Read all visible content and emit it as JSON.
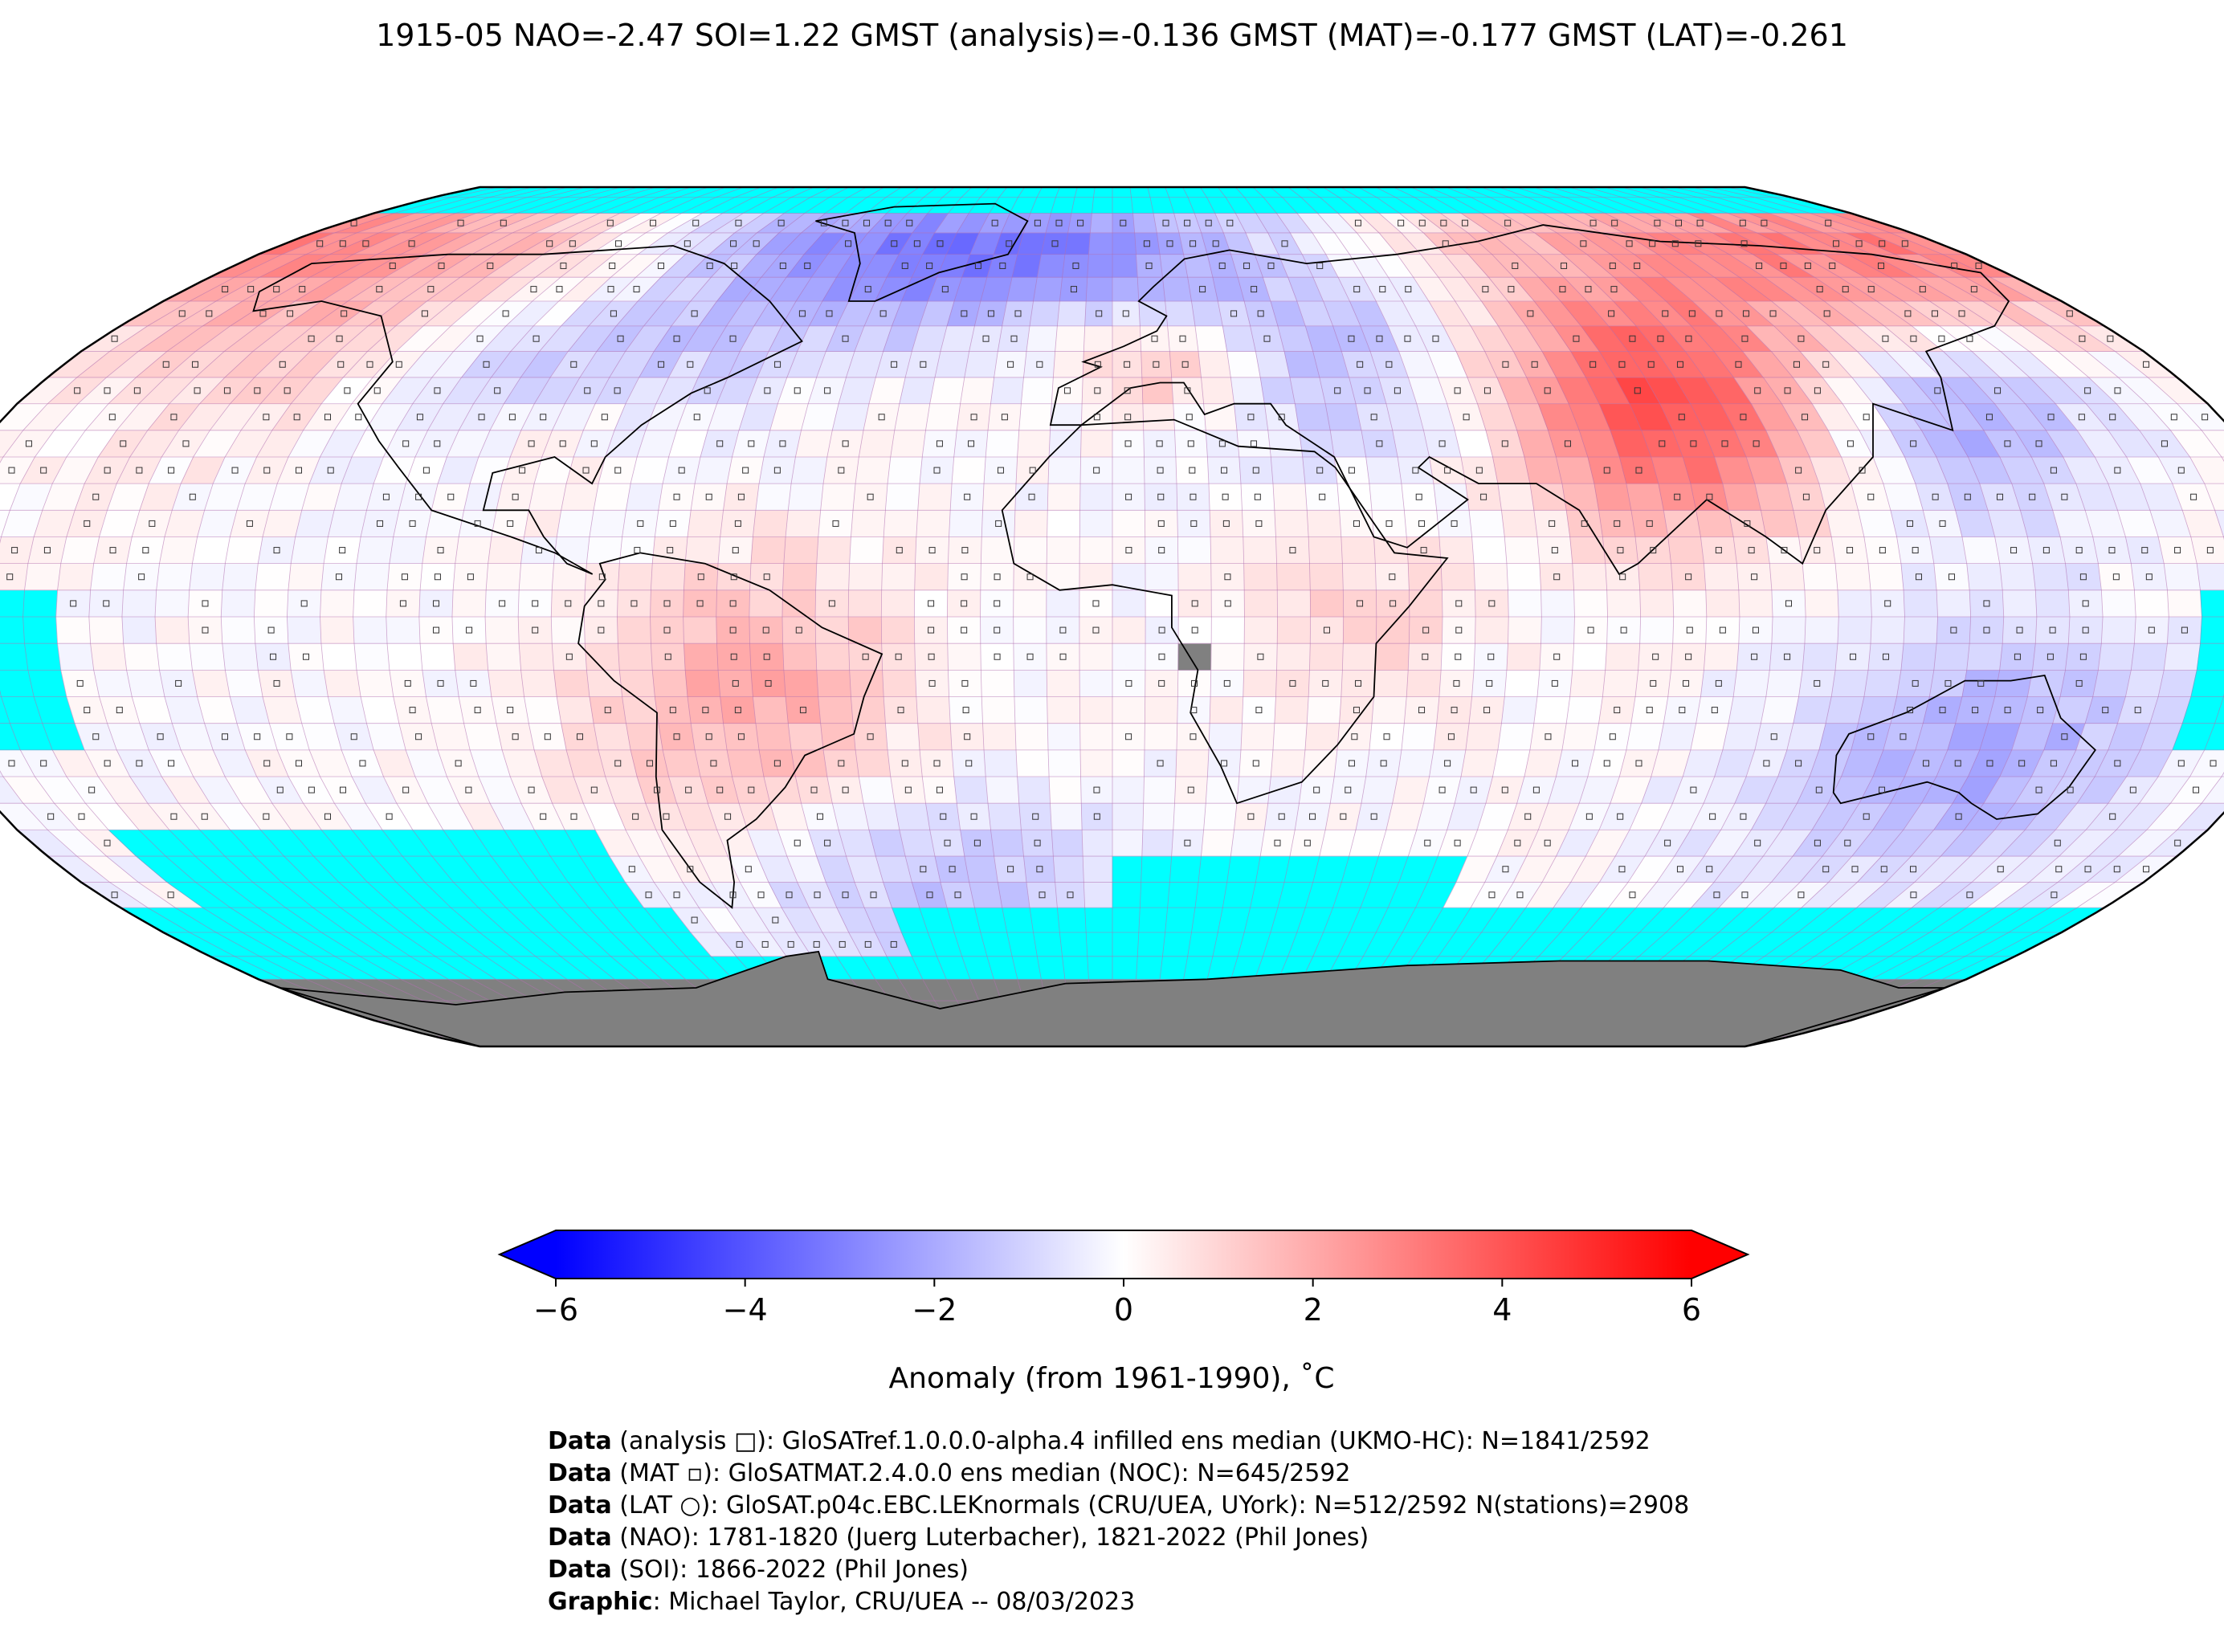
{
  "title": "1915-05 NAO=-2.47 SOI=1.22 GMST (analysis)=-0.136 GMST (MAT)=-0.177 GMST (LAT)=-0.261",
  "colorbar": {
    "label": "Anomaly (from 1961-1990), ˚C",
    "ticks": [
      "−6",
      "−4",
      "−2",
      "0",
      "2",
      "4",
      "6"
    ],
    "range": [
      -6,
      6
    ],
    "colors": {
      "min": "#0000ff",
      "mid": "#ffffff",
      "max": "#ff0000"
    },
    "extend": "both"
  },
  "map": {
    "projection": "Robinson",
    "grid": "5° lat-lon cells",
    "missing_color": "#00ffff",
    "land_mask_color": "#808080",
    "regions": [
      {
        "region": "Central/Eastern Siberia",
        "anomaly": 3.5
      },
      {
        "region": "Alaska / NW Canada",
        "anomaly": 2.0
      },
      {
        "region": "Central Asia / Tibet",
        "anomaly": 3.0
      },
      {
        "region": "Southern USA / Gulf",
        "anomaly": 1.5
      },
      {
        "region": "Central Europe",
        "anomaly": 2.0
      },
      {
        "region": "Central South America",
        "anomaly": 2.0
      },
      {
        "region": "Eastern Africa",
        "anomaly": 1.0
      },
      {
        "region": "Northern USA / Canada",
        "anomaly": -2.0
      },
      {
        "region": "Scandinavia / Western Russia",
        "anomaly": -2.5
      },
      {
        "region": "East Asia / Japan",
        "anomaly": -3.0
      },
      {
        "region": "Greenland",
        "anomaly": -3.0
      },
      {
        "region": "Australia",
        "anomaly": -2.0
      },
      {
        "region": "Southern Ocean (S. Atlantic)",
        "anomaly": -1.5
      }
    ]
  },
  "credits": [
    {
      "bold": "Data",
      "text": " (analysis □): GloSATref.1.0.0.0-alpha.4 infilled ens median (UKMO-HC): N=1841/2592"
    },
    {
      "bold": "Data",
      "text": " (MAT ▫): GloSATMAT.2.4.0.0 ens median (NOC): N=645/2592"
    },
    {
      "bold": "Data",
      "text": " (LAT ○): GloSAT.p04c.EBC.LEKnormals (CRU/UEA, UYork): N=512/2592 N(stations)=2908"
    },
    {
      "bold": "Data",
      "text": " (NAO): 1781-1820 (Juerg Luterbacher), 1821-2022 (Phil Jones)"
    },
    {
      "bold": "Data",
      "text": " (SOI): 1866-2022 (Phil Jones)"
    },
    {
      "bold": "Graphic",
      "text": ": Michael Taylor, CRU/UEA -- 08/03/2023"
    }
  ]
}
